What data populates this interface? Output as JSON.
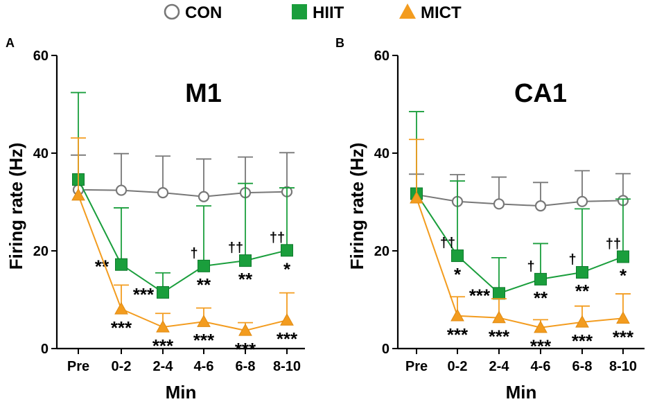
{
  "legend": {
    "placement": "top-center",
    "items": [
      {
        "name": "CON",
        "marker": "circle-open",
        "color": "#777777"
      },
      {
        "name": "HIIT",
        "marker": "square",
        "color": "#1a9e3c"
      },
      {
        "name": "MICT",
        "marker": "triangle",
        "color": "#f39c1f"
      }
    ]
  },
  "chart_data": [
    {
      "type": "line",
      "panel_label": "A",
      "title": "M1",
      "xlabel": "Min",
      "ylabel": "Firing rate (Hz)",
      "categories": [
        "Pre",
        "0-2",
        "2-4",
        "4-6",
        "6-8",
        "8-10"
      ],
      "ylim": [
        0,
        60
      ],
      "yticks": [
        "0",
        "20",
        "40",
        "60"
      ],
      "series": [
        {
          "name": "CON",
          "color": "#777777",
          "marker": "circle-open",
          "values": [
            32.5,
            32.4,
            31.9,
            31.1,
            31.9,
            32.1
          ],
          "error_upper": [
            39.6,
            39.9,
            39.4,
            38.8,
            39.2,
            40.1
          ],
          "annotations": [
            "",
            "",
            "",
            "",
            "",
            ""
          ]
        },
        {
          "name": "HIIT",
          "color": "#1a9e3c",
          "marker": "square",
          "values": [
            34.6,
            17.2,
            11.5,
            16.9,
            18.0,
            20.1
          ],
          "error_upper": [
            52.4,
            28.8,
            15.5,
            29.2,
            33.8,
            32.9
          ],
          "annotations": [
            "",
            "**",
            "***",
            "**",
            "**",
            "*"
          ],
          "annotations_top": [
            "",
            "",
            "",
            "†",
            "††",
            "††"
          ]
        },
        {
          "name": "MICT",
          "color": "#f39c1f",
          "marker": "triangle",
          "values": [
            31.4,
            8.1,
            4.4,
            5.5,
            3.7,
            5.8
          ],
          "error_upper": [
            43.1,
            13.0,
            7.2,
            8.3,
            5.3,
            11.4
          ],
          "annotations": [
            "",
            "***",
            "***",
            "***",
            "***",
            "***"
          ]
        }
      ]
    },
    {
      "type": "line",
      "panel_label": "B",
      "title": "CA1",
      "xlabel": "Min",
      "ylabel": "Firing rate (Hz)",
      "categories": [
        "Pre",
        "0-2",
        "2-4",
        "4-6",
        "6-8",
        "8-10"
      ],
      "ylim": [
        0,
        60
      ],
      "yticks": [
        "0",
        "20",
        "40",
        "60"
      ],
      "series": [
        {
          "name": "CON",
          "color": "#777777",
          "marker": "circle-open",
          "values": [
            31.5,
            30.1,
            29.6,
            29.2,
            30.1,
            30.3
          ],
          "error_upper": [
            35.7,
            35.6,
            35.1,
            34.0,
            36.4,
            35.8
          ],
          "annotations": [
            "",
            "",
            "",
            "",
            "",
            ""
          ]
        },
        {
          "name": "HIIT",
          "color": "#1a9e3c",
          "marker": "square",
          "values": [
            31.7,
            19.0,
            11.3,
            14.2,
            15.6,
            18.8
          ],
          "error_upper": [
            48.5,
            34.3,
            18.6,
            21.5,
            28.6,
            30.6
          ],
          "annotations": [
            "",
            "*",
            "***",
            "**",
            "**",
            "*"
          ],
          "annotations_top": [
            "",
            "††",
            "",
            "†",
            "†",
            "††"
          ]
        },
        {
          "name": "MICT",
          "color": "#f39c1f",
          "marker": "triangle",
          "values": [
            30.8,
            6.7,
            6.3,
            4.3,
            5.4,
            6.2
          ],
          "error_upper": [
            42.8,
            10.6,
            10.2,
            5.9,
            8.7,
            11.2
          ],
          "annotations": [
            "",
            "***",
            "***",
            "***",
            "***",
            "***"
          ]
        }
      ]
    }
  ]
}
